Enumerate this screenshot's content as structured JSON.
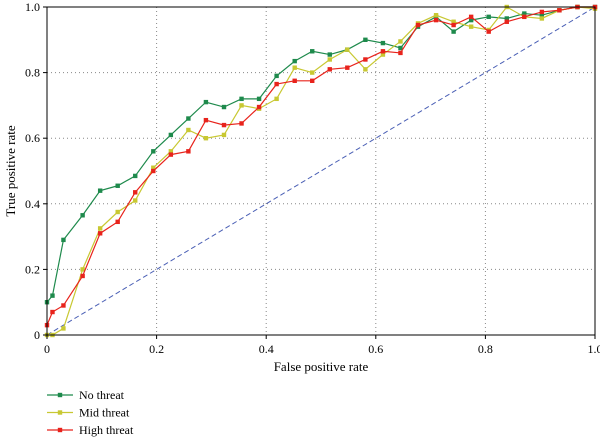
{
  "chart_data": {
    "type": "line",
    "title": "",
    "xlabel": "False positive rate",
    "ylabel": "True positive rate",
    "xlim": [
      0,
      1
    ],
    "ylim": [
      0,
      1
    ],
    "x_ticks": [
      "0",
      "0.2",
      "0.4",
      "0.6",
      "0.8",
      "1.0"
    ],
    "x_tick_values": [
      0,
      0.2,
      0.4,
      0.6,
      0.8,
      1.0
    ],
    "y_ticks": [
      "0",
      "0.2",
      "0.4",
      "0.6",
      "0.8",
      "1.0"
    ],
    "y_tick_values": [
      0,
      0.2,
      0.4,
      0.6,
      0.8,
      1.0
    ],
    "grid": "dotted, both axes",
    "legend_position": "bottom-left, below plot",
    "reference_line": {
      "x": [
        0,
        1
      ],
      "y": [
        0,
        1
      ],
      "color": "#4a5fb5",
      "style": "dashed"
    },
    "series": [
      {
        "name": "No threat",
        "color": "#1e8a4c",
        "x": [
          0,
          0.01,
          0.03,
          0.065,
          0.097,
          0.129,
          0.161,
          0.194,
          0.226,
          0.258,
          0.29,
          0.323,
          0.355,
          0.387,
          0.419,
          0.452,
          0.484,
          0.516,
          0.548,
          0.581,
          0.613,
          0.645,
          0.677,
          0.71,
          0.742,
          0.774,
          0.806,
          0.839,
          0.871,
          0.903,
          0.935,
          0.968,
          1.0
        ],
        "y": [
          0.1,
          0.12,
          0.29,
          0.365,
          0.44,
          0.455,
          0.485,
          0.56,
          0.61,
          0.66,
          0.71,
          0.695,
          0.72,
          0.72,
          0.79,
          0.835,
          0.865,
          0.855,
          0.87,
          0.9,
          0.89,
          0.875,
          0.94,
          0.97,
          0.925,
          0.96,
          0.97,
          0.965,
          0.98,
          0.975,
          0.99,
          1.0,
          1.0
        ]
      },
      {
        "name": "Mid threat",
        "color": "#c8c832",
        "x": [
          0,
          0.01,
          0.03,
          0.065,
          0.097,
          0.129,
          0.161,
          0.194,
          0.226,
          0.258,
          0.29,
          0.323,
          0.355,
          0.387,
          0.419,
          0.452,
          0.484,
          0.516,
          0.548,
          0.581,
          0.613,
          0.645,
          0.677,
          0.71,
          0.742,
          0.774,
          0.806,
          0.839,
          0.871,
          0.903,
          0.935,
          0.968,
          1.0
        ],
        "y": [
          0.0,
          0.0,
          0.02,
          0.2,
          0.325,
          0.375,
          0.41,
          0.51,
          0.56,
          0.625,
          0.6,
          0.61,
          0.7,
          0.69,
          0.72,
          0.815,
          0.8,
          0.84,
          0.87,
          0.81,
          0.855,
          0.895,
          0.95,
          0.975,
          0.955,
          0.94,
          0.93,
          1.0,
          0.97,
          0.965,
          0.99,
          1.0,
          0.995
        ]
      },
      {
        "name": "High threat",
        "color": "#e8231c",
        "x": [
          0,
          0.01,
          0.03,
          0.065,
          0.097,
          0.129,
          0.161,
          0.194,
          0.226,
          0.258,
          0.29,
          0.323,
          0.355,
          0.387,
          0.419,
          0.452,
          0.484,
          0.516,
          0.548,
          0.581,
          0.613,
          0.645,
          0.677,
          0.71,
          0.742,
          0.774,
          0.806,
          0.839,
          0.871,
          0.903,
          0.935,
          0.968,
          1.0
        ],
        "y": [
          0.03,
          0.07,
          0.09,
          0.18,
          0.31,
          0.345,
          0.435,
          0.5,
          0.55,
          0.56,
          0.655,
          0.64,
          0.645,
          0.695,
          0.765,
          0.775,
          0.775,
          0.81,
          0.815,
          0.84,
          0.865,
          0.86,
          0.945,
          0.96,
          0.945,
          0.97,
          0.925,
          0.955,
          0.97,
          0.985,
          0.99,
          1.0,
          1.0
        ]
      }
    ]
  }
}
